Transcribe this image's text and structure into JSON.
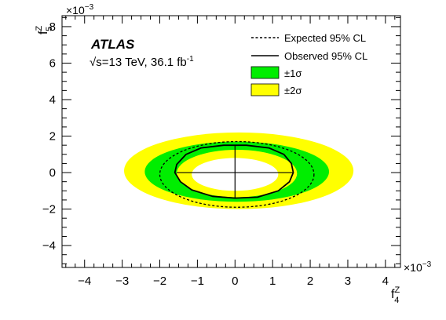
{
  "chart_data": {
    "type": "area",
    "experiment": "ATLAS",
    "energy_text": "√s=13 TeV, 36.1 fb",
    "energy_sup": "-1",
    "x_label_main": "f",
    "x_label_sub": "4",
    "x_label_sup": "Z",
    "y_label_main": "f",
    "y_label_sub": "5",
    "y_label_sup": "Z",
    "x_multiplier": "×10",
    "x_multiplier_exp": "−3",
    "y_multiplier": "×10",
    "y_multiplier_exp": "−3",
    "xlim": [
      -4.6,
      4.4
    ],
    "ylim": [
      -5.2,
      8.6
    ],
    "x_ticks": [
      -4,
      -3,
      -2,
      -1,
      0,
      1,
      2,
      3,
      4
    ],
    "x_tick_labels": [
      "−4",
      "−3",
      "−2",
      "−1",
      "0",
      "1",
      "2",
      "3",
      "4"
    ],
    "y_ticks": [
      -4,
      -2,
      0,
      2,
      4,
      6,
      8
    ],
    "y_tick_labels": [
      "−4",
      "−2",
      "0",
      "2",
      "4",
      "6",
      "8"
    ],
    "legend": [
      {
        "label": "Expected 95% CL",
        "style": "dashed"
      },
      {
        "label": "Observed 95% CL",
        "style": "solid"
      },
      {
        "label": "±1σ",
        "style": "fill",
        "color": "#00ee00"
      },
      {
        "label": "±2σ",
        "style": "fill",
        "color": "#ffff00"
      }
    ],
    "legend_position": "top-right",
    "best_fit": [
      0,
      0
    ],
    "bands": {
      "two_sigma_outer": {
        "center": [
          0.1,
          0.1
        ],
        "rx": 3.05,
        "ry": 2.1
      },
      "one_sigma_outer": {
        "center": [
          0.05,
          0.05
        ],
        "rx": 2.45,
        "ry": 1.65
      },
      "one_sigma_inner": {
        "center": [
          0.05,
          -0.05
        ],
        "rx": 1.6,
        "ry": 1.3
      },
      "two_sigma_inner": {
        "center": [
          0.0,
          -0.1
        ],
        "rx": 1.15,
        "ry": 0.9
      }
    },
    "expected_contour": {
      "center": [
        0.05,
        -0.1
      ],
      "rx": 2.05,
      "ry": 1.8
    },
    "observed_contour": [
      [
        1.55,
        0.0
      ],
      [
        1.5,
        0.5
      ],
      [
        1.3,
        1.0
      ],
      [
        0.9,
        1.35
      ],
      [
        0.3,
        1.5
      ],
      [
        -0.3,
        1.5
      ],
      [
        -0.9,
        1.35
      ],
      [
        -1.3,
        1.0
      ],
      [
        -1.55,
        0.45
      ],
      [
        -1.6,
        0.0
      ],
      [
        -1.45,
        -0.5
      ],
      [
        -1.15,
        -0.95
      ],
      [
        -0.6,
        -1.3
      ],
      [
        0.0,
        -1.4
      ],
      [
        0.6,
        -1.35
      ],
      [
        1.15,
        -1.0
      ],
      [
        1.45,
        -0.5
      ],
      [
        1.55,
        0.0
      ]
    ],
    "colors": {
      "one_sigma": "#00ee00",
      "two_sigma": "#ffff00"
    }
  }
}
